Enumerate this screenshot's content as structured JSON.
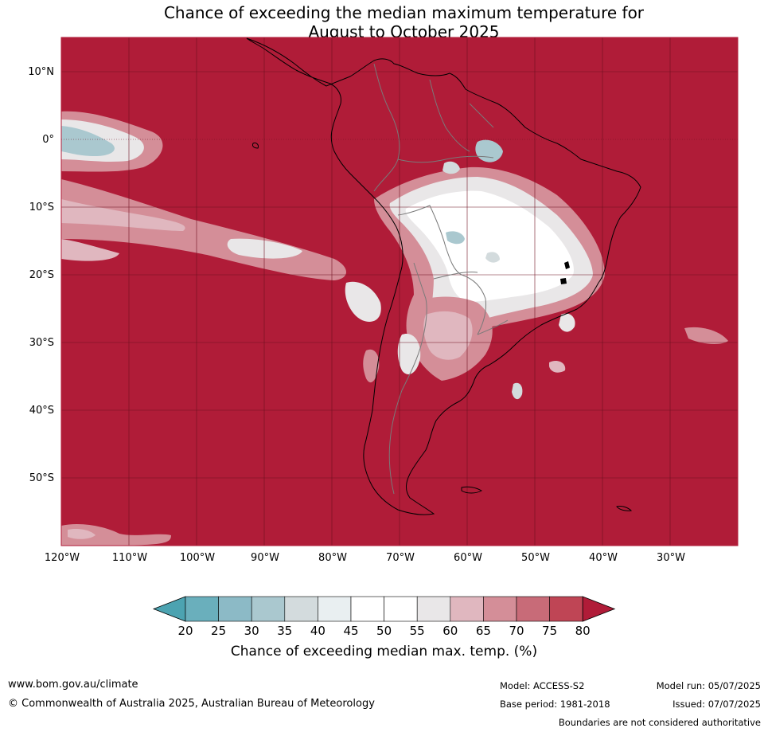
{
  "title": {
    "line1": "Chance of exceeding the median maximum temperature for",
    "line2": "August to October 2025"
  },
  "map": {
    "lat_labels": [
      "10°N",
      "0°",
      "10°S",
      "20°S",
      "30°S",
      "40°S",
      "50°S"
    ],
    "lon_labels": [
      "120°W",
      "110°W",
      "100°W",
      "90°W",
      "80°W",
      "70°W",
      "60°W",
      "50°W",
      "40°W",
      "30°W"
    ],
    "extent": {
      "lon_min": -120,
      "lon_max": -20,
      "lat_min": -60,
      "lat_max": 15
    },
    "base_color": "#b01c38"
  },
  "colorbar": {
    "ticks": [
      "20",
      "25",
      "30",
      "35",
      "40",
      "45",
      "50",
      "55",
      "60",
      "65",
      "70",
      "75",
      "80"
    ],
    "colors": [
      "#4ca3b1",
      "#6aafbc",
      "#8cbac6",
      "#aac8cf",
      "#d3dbdd",
      "#e9eff1",
      "#ffffff",
      "#ffffff",
      "#e9e7e8",
      "#e0b7bf",
      "#d48e98",
      "#c86b78",
      "#bf4555",
      "#b01c38"
    ],
    "label": "Chance of exceeding median max. temp. (%)"
  },
  "footer": {
    "website": "www.bom.gov.au/climate",
    "copyright": "© Commonwealth of Australia 2025, Australian Bureau of Meteorology",
    "model": "Model: ACCESS-S2",
    "base_period": "Base period: 1981-2018",
    "model_run": "Model run: 05/07/2025",
    "issued": "Issued: 07/07/2025",
    "disclaimer": "Boundaries are not considered authoritative"
  }
}
